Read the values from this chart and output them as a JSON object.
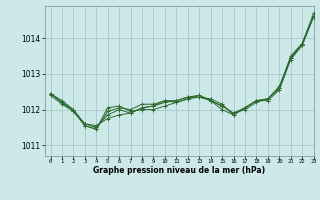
{
  "title": "Graphe pression niveau de la mer (hPa)",
  "bg_color": "#cce8e8",
  "grid_color": "#aac8c8",
  "line_color": "#2d6a2d",
  "xlim": [
    -0.5,
    23
  ],
  "ylim": [
    1010.7,
    1014.9
  ],
  "yticks": [
    1011,
    1012,
    1013,
    1014
  ],
  "xticks": [
    0,
    1,
    2,
    3,
    4,
    5,
    6,
    7,
    8,
    9,
    10,
    11,
    12,
    13,
    14,
    15,
    16,
    17,
    18,
    19,
    20,
    21,
    22,
    23
  ],
  "series": [
    [
      1012.45,
      1012.25,
      1012.0,
      1011.6,
      1011.55,
      1011.75,
      1011.85,
      1011.9,
      1012.05,
      1012.1,
      1012.2,
      1012.25,
      1012.35,
      1012.35,
      1012.3,
      1012.15,
      1011.85,
      1012.05,
      1012.25,
      1012.3,
      1012.6,
      1013.5,
      1013.85,
      1014.7
    ],
    [
      1012.4,
      1012.15,
      1011.95,
      1011.55,
      1011.45,
      1011.95,
      1012.05,
      1012.0,
      1012.15,
      1012.15,
      1012.25,
      1012.2,
      1012.3,
      1012.35,
      1012.25,
      1012.1,
      1011.9,
      1012.05,
      1012.25,
      1012.25,
      1012.55,
      1013.4,
      1013.8,
      1014.6
    ],
    [
      1012.45,
      1012.2,
      1012.0,
      1011.55,
      1011.45,
      1012.05,
      1012.1,
      1011.95,
      1012.0,
      1012.0,
      1012.1,
      1012.2,
      1012.3,
      1012.4,
      1012.25,
      1012.0,
      1011.85,
      1012.05,
      1012.25,
      1012.3,
      1012.65,
      1013.45,
      1013.85,
      1014.6
    ],
    [
      1012.45,
      1012.2,
      1011.95,
      1011.6,
      1011.5,
      1011.85,
      1012.0,
      1011.9,
      1012.05,
      1012.1,
      1012.25,
      1012.25,
      1012.35,
      1012.4,
      1012.25,
      1012.1,
      1011.9,
      1012.0,
      1012.2,
      1012.3,
      1012.6,
      1013.45,
      1013.8,
      1014.62
    ]
  ]
}
